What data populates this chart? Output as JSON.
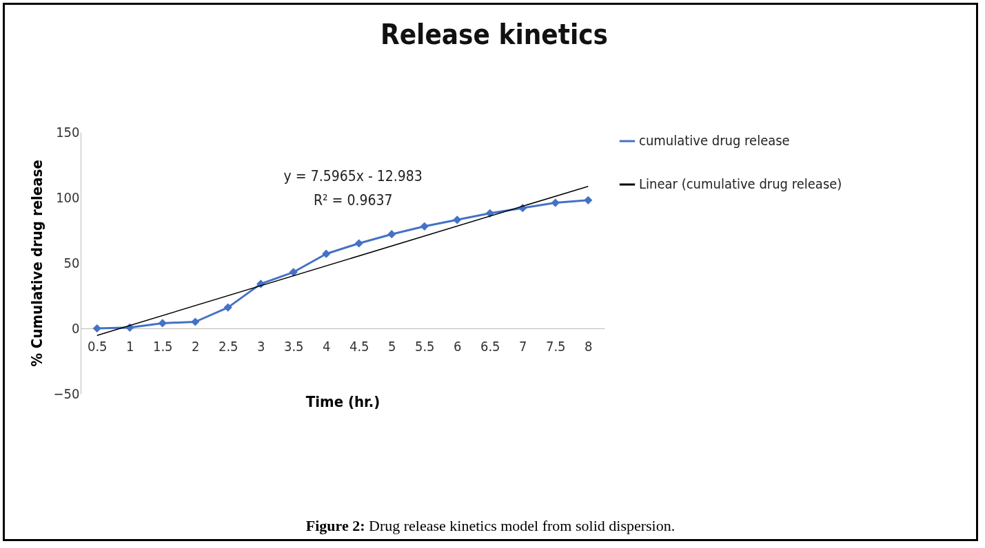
{
  "chart_data": {
    "type": "line",
    "title": "Release kinetics",
    "xlabel": "Time (hr.)",
    "ylabel": "% Cumulative drug release",
    "categories": [
      "0.5",
      "1",
      "1.5",
      "2",
      "2.5",
      "3",
      "3.5",
      "4",
      "4.5",
      "5",
      "5.5",
      "6",
      "6.5",
      "7",
      "7.5",
      "8"
    ],
    "series": [
      {
        "name": "cumulative drug release",
        "color": "#4472c4",
        "marker": "diamond",
        "values": [
          0,
          0.6,
          4,
          5,
          16,
          34,
          43,
          57,
          65,
          72,
          78,
          83,
          88,
          92,
          96,
          98
        ]
      },
      {
        "name": "Linear (cumulative drug release)",
        "type": "line",
        "color": "#000000",
        "marker": "none",
        "x": [
          "0.5",
          "8"
        ],
        "values": [
          -5.4,
          108.6
        ]
      }
    ],
    "ylim": [
      -50,
      150
    ],
    "yticks": [
      -50,
      0,
      50,
      100,
      150
    ],
    "grid": false,
    "legend": "right",
    "annotations": [
      "y = 7.5965x - 12.983",
      "R² = 0.9637",
      "Figure 2: Drug release kinetics model from solid dispersion."
    ]
  }
}
